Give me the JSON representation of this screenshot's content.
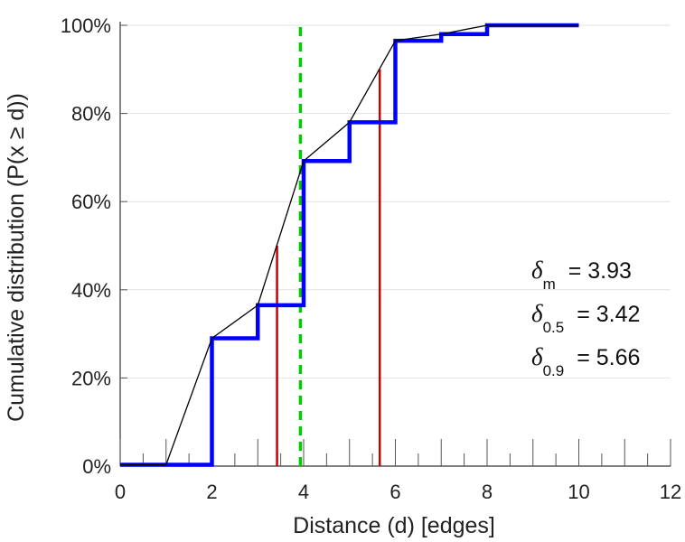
{
  "chart_data": {
    "type": "line",
    "xlabel": "Distance (d) [edges]",
    "ylabel": "Cumulative distribution (P(x ≥ d))",
    "xlim": [
      0,
      12
    ],
    "ylim": [
      0,
      100
    ],
    "x_ticks": [
      "0",
      "2",
      "4",
      "6",
      "8",
      "10",
      "12"
    ],
    "y_ticks": [
      "0%",
      "20%",
      "40%",
      "60%",
      "80%",
      "100%"
    ],
    "grid": "horizontal",
    "legend": "none",
    "series": [
      {
        "kind": "step",
        "color": "#0000ff",
        "x": [
          0,
          2,
          3,
          4,
          5,
          6,
          7,
          8,
          10
        ],
        "y": [
          0.3,
          29,
          36.5,
          69.2,
          78,
          96.5,
          98,
          100,
          100
        ]
      },
      {
        "kind": "line",
        "color": "#000000",
        "x": [
          0,
          1,
          2,
          3,
          4,
          5,
          6,
          7,
          8,
          10
        ],
        "y": [
          0.3,
          0.3,
          29,
          36.5,
          69.2,
          78,
          96.5,
          98,
          100,
          100
        ]
      }
    ],
    "markers": [
      {
        "kind": "vline",
        "x": 3.93,
        "color": "#00cc00",
        "style": "dashed"
      },
      {
        "kind": "vline",
        "x": 3.42,
        "y_max": 50,
        "color": "#cc0000",
        "style": "solid"
      },
      {
        "kind": "vline",
        "x": 5.66,
        "y_max": 90,
        "color": "#cc0000",
        "style": "solid"
      }
    ],
    "annotations": [
      {
        "symbol": "δ",
        "sub": "m",
        "text": "= 3.93"
      },
      {
        "symbol": "δ",
        "sub": "0.5",
        "text": "= 3.42"
      },
      {
        "symbol": "δ",
        "sub": "0.9",
        "text": "= 5.66"
      }
    ]
  }
}
